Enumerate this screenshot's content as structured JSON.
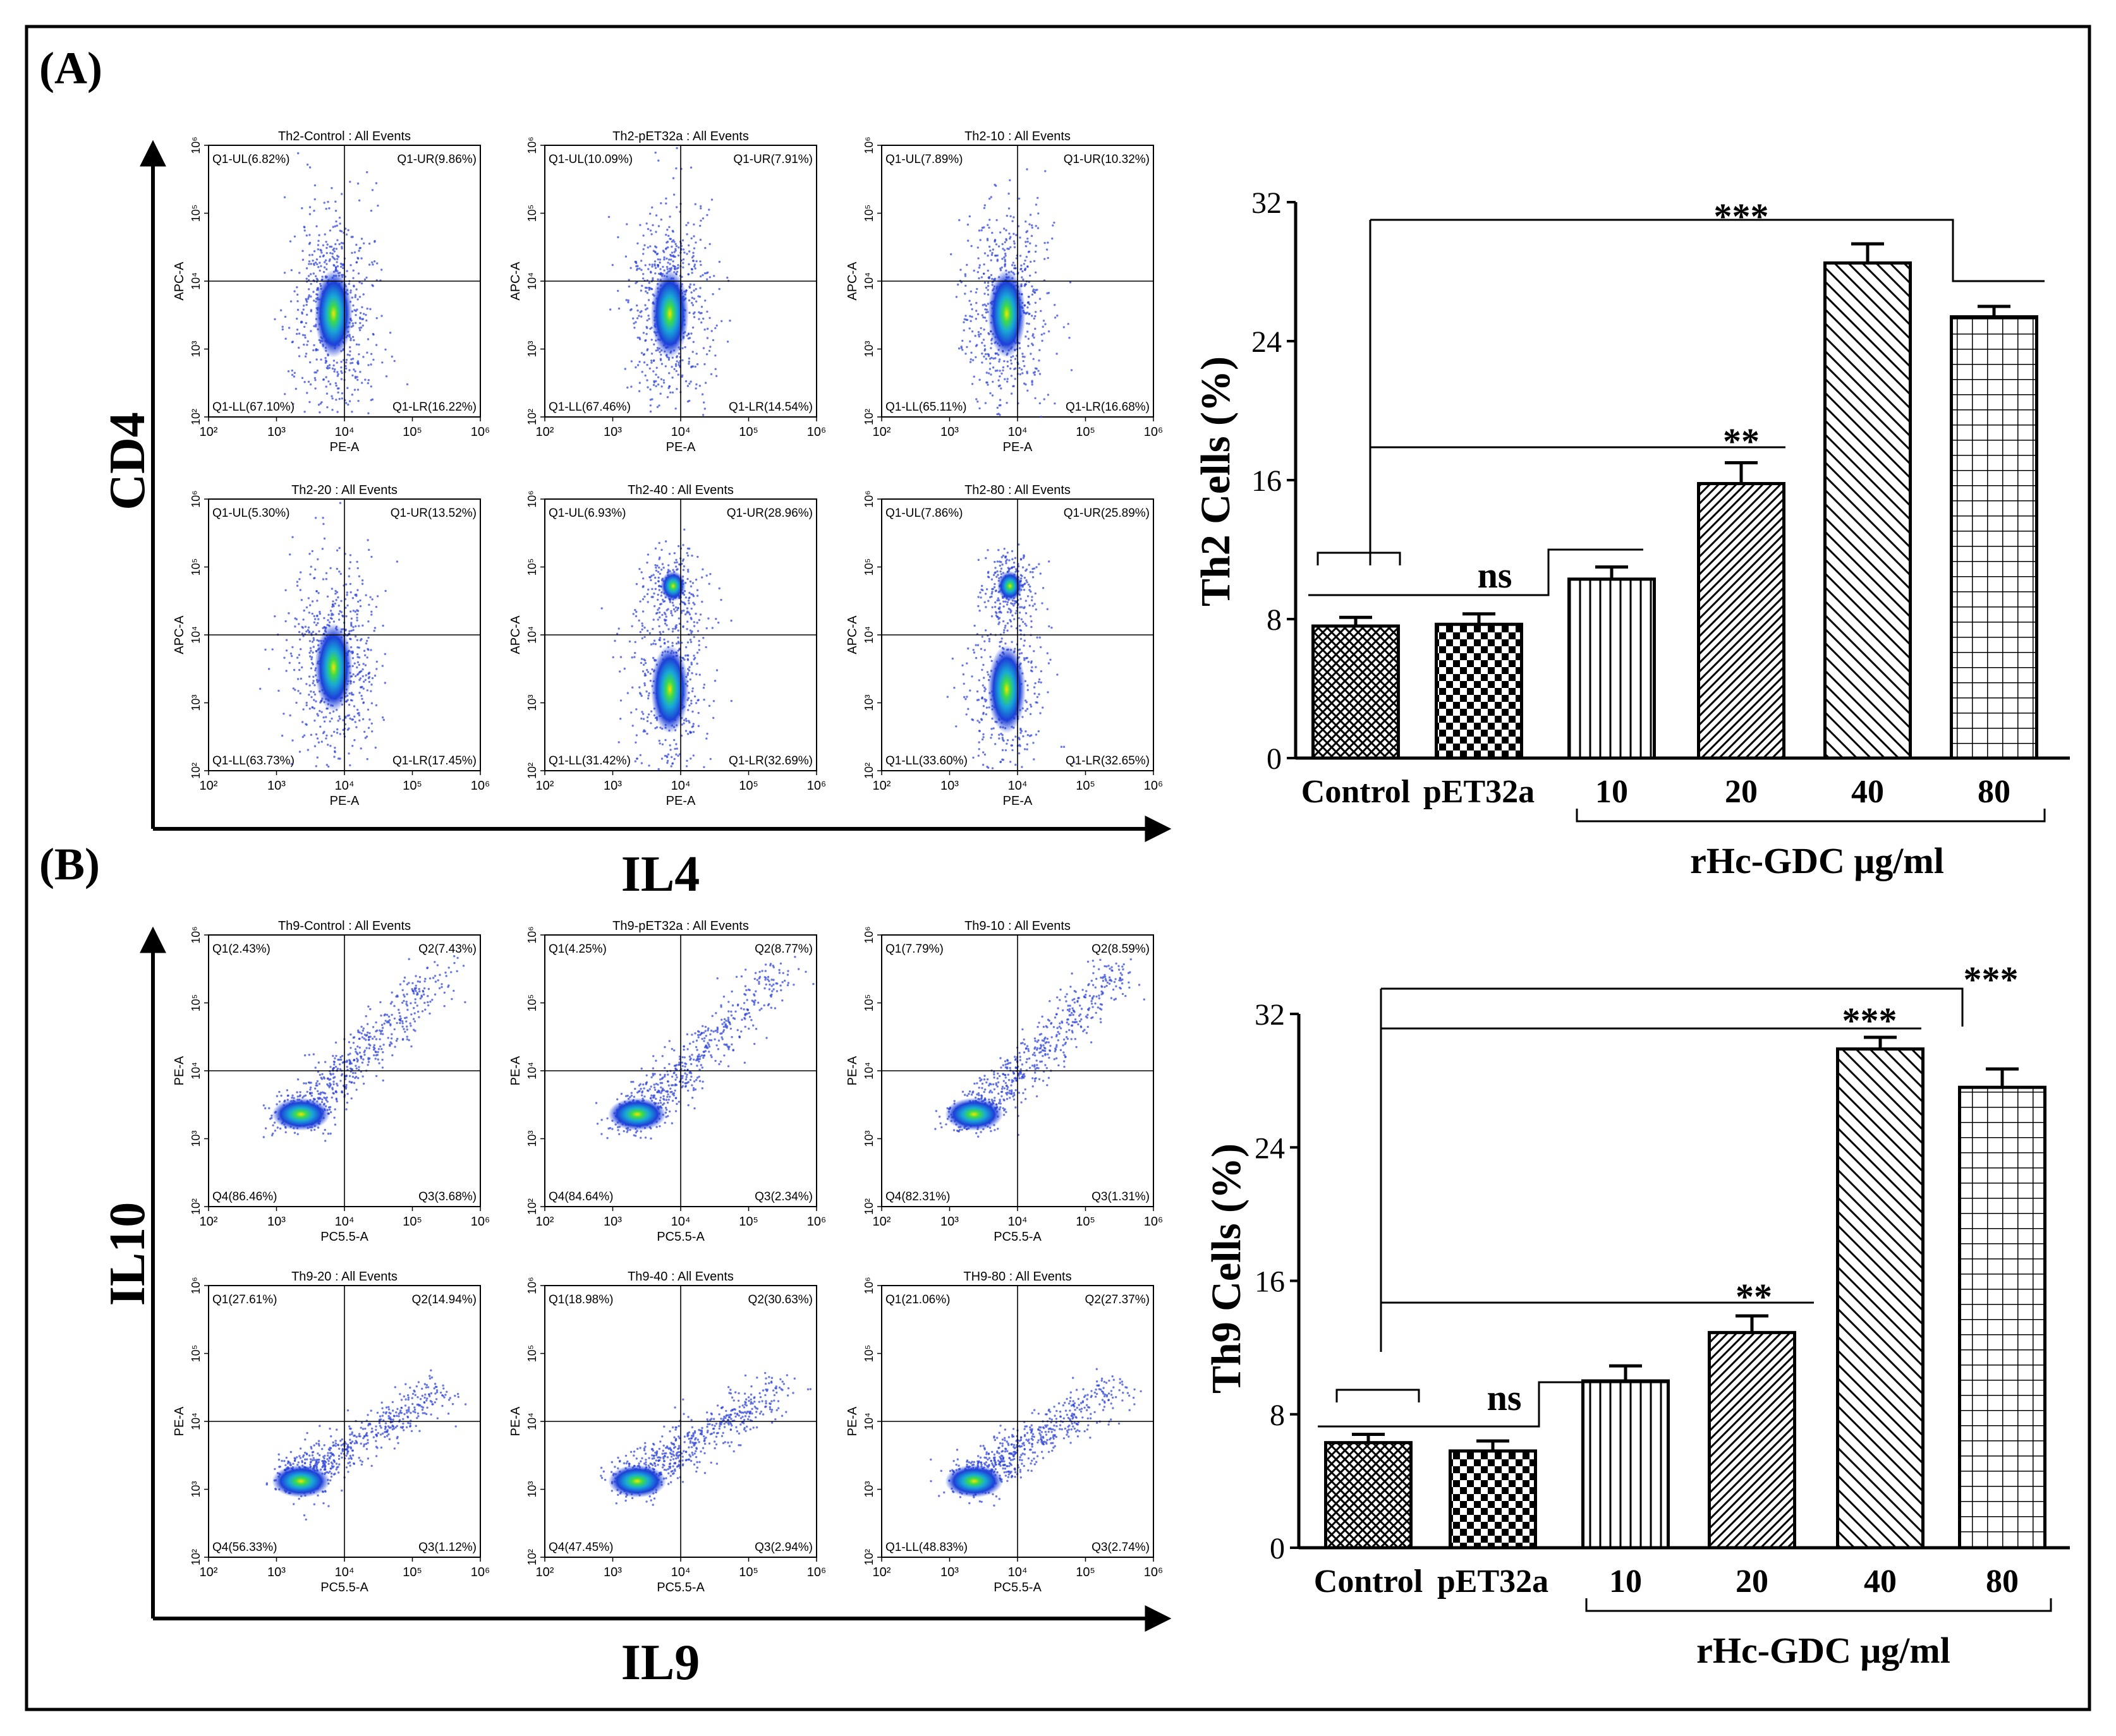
{
  "panel_labels": [
    "(A)",
    "(B)"
  ],
  "flow_A": {
    "y_axis_title": "CD4",
    "x_axis_title": "IL4",
    "x_channel": "PE-A",
    "y_channel": "APC-A",
    "x_ticks": [
      "10²",
      "10³",
      "10⁴",
      "10⁵",
      "10⁶"
    ],
    "y_ticks": [
      "10²",
      "10³",
      "10⁴",
      "10⁵",
      "10⁶"
    ],
    "plots": [
      {
        "title": "Th2-Control : All Events",
        "ul": "Q1-UL(6.82%)",
        "ur": "Q1-UR(9.86%)",
        "ll": "Q1-LL(67.10%)",
        "lr": "Q1-LR(16.22%)"
      },
      {
        "title": "Th2-pET32a : All Events",
        "ul": "Q1-UL(10.09%)",
        "ur": "Q1-UR(7.91%)",
        "ll": "Q1-LL(67.46%)",
        "lr": "Q1-LR(14.54%)"
      },
      {
        "title": "Th2-10 : All Events",
        "ul": "Q1-UL(7.89%)",
        "ur": "Q1-UR(10.32%)",
        "ll": "Q1-LL(65.11%)",
        "lr": "Q1-LR(16.68%)"
      },
      {
        "title": "Th2-20 : All Events",
        "ul": "Q1-UL(5.30%)",
        "ur": "Q1-UR(13.52%)",
        "ll": "Q1-LL(63.73%)",
        "lr": "Q1-LR(17.45%)"
      },
      {
        "title": "Th2-40 : All Events",
        "ul": "Q1-UL(6.93%)",
        "ur": "Q1-UR(28.96%)",
        "ll": "Q1-LL(31.42%)",
        "lr": "Q1-LR(32.69%)"
      },
      {
        "title": "Th2-80 : All Events",
        "ul": "Q1-UL(7.86%)",
        "ur": "Q1-UR(25.89%)",
        "ll": "Q1-LL(33.60%)",
        "lr": "Q1-LR(32.65%)"
      }
    ]
  },
  "flow_B": {
    "y_axis_title": "IL10",
    "x_axis_title": "IL9",
    "x_channel": "PC5.5-A",
    "y_channel": "PE-A",
    "x_ticks": [
      "10²",
      "10³",
      "10⁴",
      "10⁵",
      "10⁶"
    ],
    "y_ticks": [
      "10²",
      "10³",
      "10⁴",
      "10⁵",
      "10⁶"
    ],
    "plots": [
      {
        "title": "Th9-Control : All Events",
        "ul": "Q1(2.43%)",
        "ur": "Q2(7.43%)",
        "ll": "Q4(86.46%)",
        "lr": "Q3(3.68%)"
      },
      {
        "title": "Th9-pET32a : All Events",
        "ul": "Q1(4.25%)",
        "ur": "Q2(8.77%)",
        "ll": "Q4(84.64%)",
        "lr": "Q3(2.34%)"
      },
      {
        "title": "Th9-10 : All Events",
        "ul": "Q1(7.79%)",
        "ur": "Q2(8.59%)",
        "ll": "Q4(82.31%)",
        "lr": "Q3(1.31%)"
      },
      {
        "title": "Th9-20 : All Events",
        "ul": "Q1(27.61%)",
        "ur": "Q2(14.94%)",
        "ll": "Q4(56.33%)",
        "lr": "Q3(1.12%)"
      },
      {
        "title": "Th9-40 : All Events",
        "ul": "Q1(18.98%)",
        "ur": "Q2(30.63%)",
        "ll": "Q4(47.45%)",
        "lr": "Q3(2.94%)"
      },
      {
        "title": "TH9-80 : All Events",
        "ul": "Q1(21.06%)",
        "ur": "Q2(27.37%)",
        "ll": "Q1-LL(48.83%)",
        "lr": "Q3(2.74%)"
      }
    ]
  },
  "bar_A": {
    "ylabel": "Th2 Cells (%)",
    "group_label": "rHc-GDC μg/ml",
    "ns_label": "ns",
    "sig_20": "**",
    "sig_high": "***"
  },
  "bar_B": {
    "ylabel": "Th9 Cells (%)",
    "group_label": "rHc-GDC μg/ml",
    "ns_label": "ns",
    "sig_20": "**",
    "sig_40": "***",
    "sig_80": "***"
  },
  "chart_data": [
    {
      "type": "bar",
      "categories": [
        "Control",
        "pET32a",
        "10",
        "20",
        "40",
        "80"
      ],
      "values": [
        7.6,
        7.7,
        10.3,
        15.8,
        28.5,
        25.4
      ],
      "errors": [
        0.5,
        0.6,
        0.7,
        1.2,
        1.1,
        0.6
      ],
      "patterns": [
        "crosshatch-dense",
        "checker",
        "vertical",
        "diag-dense",
        "diag-sparse",
        "grid"
      ],
      "ylabel": "Th2 Cells (%)",
      "yticks": [
        0,
        8,
        16,
        24,
        32
      ],
      "ylim": [
        0,
        32
      ]
    },
    {
      "type": "bar",
      "categories": [
        "Control",
        "pET32a",
        "10",
        "20",
        "40",
        "80"
      ],
      "values": [
        6.3,
        5.8,
        10.0,
        12.9,
        29.9,
        27.6
      ],
      "errors": [
        0.5,
        0.6,
        0.9,
        1.0,
        0.7,
        1.1
      ],
      "patterns": [
        "crosshatch-dense",
        "checker",
        "vertical",
        "diag-dense",
        "diag-sparse",
        "grid"
      ],
      "ylabel": "Th9 Cells (%)",
      "yticks": [
        0,
        8,
        16,
        24,
        32
      ],
      "ylim": [
        0,
        32
      ]
    }
  ]
}
